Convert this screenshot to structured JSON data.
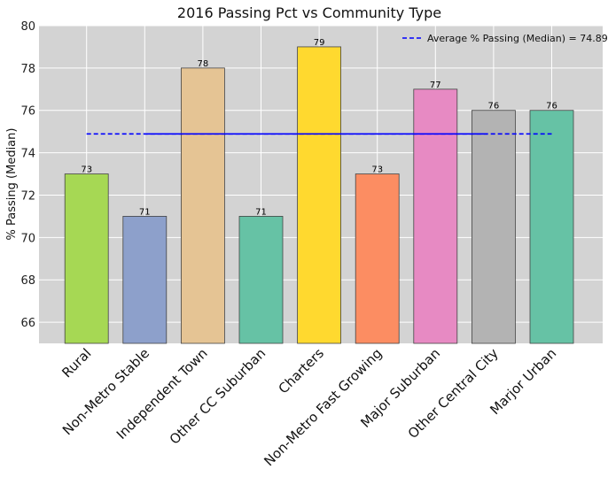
{
  "chart_data": {
    "type": "bar",
    "title": "2016 Passing Pct vs Community Type",
    "xlabel": "",
    "ylabel": "% Passing (Median)",
    "ylim": [
      65,
      80
    ],
    "yticks": [
      66,
      68,
      70,
      72,
      74,
      76,
      78,
      80
    ],
    "grid": true,
    "legend_position": "top-right",
    "categories": [
      "Rural",
      "Non-Metro Stable",
      "Independent Town",
      "Other CC Suburban",
      "Charters",
      "Non-Metro Fast Growing",
      "Major Suburban",
      "Other Central City",
      "Marjor Urban"
    ],
    "values": [
      73,
      71,
      78,
      71,
      79,
      73,
      77,
      76,
      76
    ],
    "bar_colors": [
      "#a6d854",
      "#8da0cb",
      "#e5c494",
      "#66c2a5",
      "#ffd92f",
      "#fc8d62",
      "#e78ac3",
      "#b3b3b3",
      "#66c2a5"
    ],
    "reference_line": {
      "label": "Average % Passing (Median) = 74.89",
      "value": 74.89,
      "color": "#0000ff",
      "style": "dashed"
    },
    "background_color": "#d3d3d3"
  }
}
